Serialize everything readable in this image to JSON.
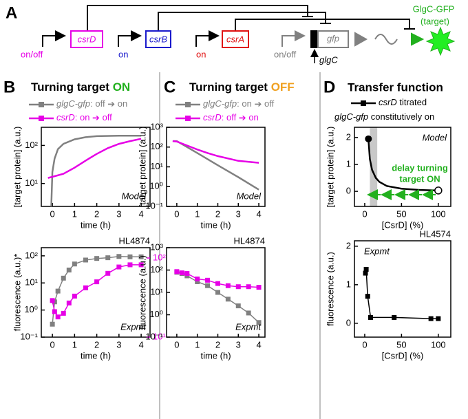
{
  "diagram": {
    "label": "A",
    "genes": [
      {
        "name": "csrD",
        "state": "on/off"
      },
      {
        "name": "csrB",
        "state": "on"
      },
      {
        "name": "csrA",
        "state": "on"
      },
      {
        "name": "gfp",
        "state": "on/off"
      }
    ],
    "glgC": "glgC",
    "product": "GlgC-GFP",
    "product_note": "(target)"
  },
  "panels": [
    {
      "label": "B",
      "title": "Turning target",
      "title_highlight": "ON",
      "legend": [
        {
          "gene": "glgC-gfp",
          "sep": ":",
          "from": "off",
          "to": "on"
        },
        {
          "gene": "csrD",
          "sep": ":",
          "from": "on",
          "to": "off"
        }
      ]
    },
    {
      "label": "C",
      "title": "Turning target",
      "title_highlight": "OFF",
      "legend": [
        {
          "gene": "glgC-gfp",
          "sep": ":",
          "from": "on",
          "to": "off"
        },
        {
          "gene": "csrD",
          "sep": ":",
          "from": "off",
          "to": "on"
        }
      ]
    },
    {
      "label": "D",
      "title": "Transfer function",
      "legend": [
        {
          "gene": "csrD",
          "text": "titrated"
        },
        {
          "gene": "glgC-gfp",
          "text": "constitutively on"
        }
      ]
    }
  ],
  "chart_data": [
    {
      "type": "line",
      "log_y": true,
      "xlim": [
        -0.5,
        4.4
      ],
      "ylim": [
        2.5,
        300
      ],
      "xticks": [
        0,
        1,
        2,
        3,
        4
      ],
      "yticks": [
        {
          "value": 10,
          "label": "10¹"
        },
        {
          "value": 100,
          "label": "10²"
        }
      ],
      "xlabel": "time (h)",
      "ylabel": "[target protein] (a.u.)",
      "annotation": "Model",
      "series": [
        {
          "color": "#808080",
          "x": [
            -0.05,
            0,
            0.1,
            0.25,
            0.5,
            1,
            1.5,
            2,
            3,
            4
          ],
          "values": [
            2.5,
            20,
            45,
            80,
            110,
            145,
            165,
            175,
            180,
            180
          ]
        },
        {
          "color": "#e600e6",
          "x": [
            -0.2,
            0,
            0.5,
            1,
            1.5,
            2,
            2.5,
            3,
            3.5,
            4
          ],
          "values": [
            14,
            15,
            18,
            26,
            40,
            60,
            85,
            110,
            130,
            150
          ]
        }
      ]
    },
    {
      "type": "line",
      "log_y": true,
      "markers": true,
      "xlim": [
        -0.5,
        4.4
      ],
      "ylim": [
        0.1,
        200
      ],
      "xticks": [
        0,
        1,
        2,
        3,
        4
      ],
      "yticks": [
        {
          "value": 0.1,
          "label": "10⁻¹"
        },
        {
          "value": 1,
          "label": "10⁰"
        },
        {
          "value": 10,
          "label": "10¹"
        },
        {
          "value": 100,
          "label": "10²"
        }
      ],
      "y2lim": [
        10,
        135
      ],
      "y2ticks": [
        {
          "value": 10,
          "label": "10¹"
        },
        {
          "value": 100,
          "label": "10²"
        }
      ],
      "y2color": "#e600e6",
      "xlabel": "time (h)",
      "ylabel": "fluorescence (a.u.)*",
      "annotation": "Expmt",
      "strain": "HL4874",
      "series": [
        {
          "color": "#808080",
          "x": [
            0,
            0.1,
            0.25,
            0.5,
            0.75,
            1,
            1.5,
            2,
            2.5,
            3,
            3.5,
            4
          ],
          "values": [
            0.3,
            2,
            5,
            15,
            30,
            50,
            70,
            80,
            85,
            95,
            92,
            92
          ]
        },
        {
          "color": "#e600e6",
          "axis": "y2",
          "x": [
            0,
            0.1,
            0.25,
            0.5,
            0.75,
            1,
            1.5,
            2,
            2.5,
            3,
            3.5,
            4
          ],
          "values": [
            29,
            21,
            18,
            20,
            27,
            33,
            42,
            50,
            64,
            77,
            82,
            82
          ]
        }
      ]
    },
    {
      "type": "line",
      "log_y": true,
      "xlim": [
        -0.5,
        4.3
      ],
      "ylim": [
        0.1,
        1000
      ],
      "xticks": [
        0,
        1,
        2,
        3,
        4
      ],
      "yticks": [
        {
          "value": 0.1,
          "label": "10⁻¹"
        },
        {
          "value": 1,
          "label": "10⁰"
        },
        {
          "value": 10,
          "label": "10¹"
        },
        {
          "value": 100,
          "label": "10²"
        },
        {
          "value": 1000,
          "label": "10³"
        }
      ],
      "xlabel": "time (h)",
      "ylabel": "[target protein] (a.u.)",
      "annotation": "Model",
      "series": [
        {
          "color": "#808080",
          "x": [
            -0.2,
            0,
            1,
            2,
            3,
            4
          ],
          "values": [
            200,
            200,
            50,
            12,
            3,
            0.7
          ]
        },
        {
          "color": "#e600e6",
          "x": [
            -0.2,
            0,
            0.5,
            1,
            1.5,
            2,
            3,
            4
          ],
          "values": [
            200,
            190,
            120,
            75,
            50,
            35,
            20,
            16
          ]
        }
      ]
    },
    {
      "type": "line",
      "log_y": true,
      "markers": true,
      "xlim": [
        -0.5,
        4.3
      ],
      "ylim": [
        0.1,
        1000
      ],
      "xticks": [
        0,
        1,
        2,
        3,
        4
      ],
      "yticks": [
        {
          "value": 0.1,
          "label": "10⁻¹"
        },
        {
          "value": 1,
          "label": "10⁰"
        },
        {
          "value": 10,
          "label": "10¹"
        },
        {
          "value": 100,
          "label": "10²"
        },
        {
          "value": 1000,
          "label": "10³"
        }
      ],
      "xlabel": "time (h)",
      "ylabel": "fluorescence (a.u.)",
      "annotation": "Expmt",
      "strain": "HL4874",
      "series": [
        {
          "color": "#808080",
          "x": [
            0,
            0.25,
            0.5,
            1,
            1.5,
            2,
            2.5,
            3,
            3.5,
            4
          ],
          "values": [
            80,
            70,
            55,
            30,
            20,
            10,
            5,
            2.5,
            1.2,
            0.45
          ]
        },
        {
          "color": "#e600e6",
          "x": [
            0,
            0.25,
            0.5,
            1,
            1.5,
            2,
            2.5,
            3,
            3.5,
            4
          ],
          "values": [
            85,
            75,
            70,
            40,
            35,
            25,
            20,
            18,
            18,
            17
          ]
        }
      ]
    },
    {
      "type": "line",
      "endpoints": true,
      "xlim": [
        -14,
        117
      ],
      "ylim": [
        -0.56,
        2.38
      ],
      "xticks": [
        0,
        50,
        100
      ],
      "yticks": [
        0,
        1,
        2
      ],
      "band": [
        7,
        17
      ],
      "xlabel": "[CsrD] (%)",
      "ylabel": "[target protein] (a.u.)",
      "annotation": "Model",
      "note": [
        "delay turning",
        "target ON"
      ],
      "series": [
        {
          "color": "#000000",
          "x": [
            5,
            7,
            10,
            15,
            20,
            30,
            50,
            75,
            100
          ],
          "values": [
            1.95,
            1.2,
            0.8,
            0.5,
            0.35,
            0.2,
            0.1,
            0.05,
            0.03
          ]
        }
      ]
    },
    {
      "type": "line",
      "markers": true,
      "xlim": [
        -14,
        117
      ],
      "ylim": [
        -0.36,
        2.14
      ],
      "xticks": [
        0,
        50,
        100
      ],
      "yticks": [
        0,
        1,
        2
      ],
      "xlabel": "[CsrD] (%)",
      "ylabel": "fluorescence (a.u.)",
      "annotation": "Expmt",
      "strain": "HL4574",
      "series": [
        {
          "color": "#000000",
          "x": [
            1,
            2,
            4,
            8,
            40,
            90,
            100
          ],
          "values": [
            1.3,
            1.4,
            0.7,
            0.15,
            0.15,
            0.12,
            0.12
          ]
        }
      ]
    }
  ]
}
